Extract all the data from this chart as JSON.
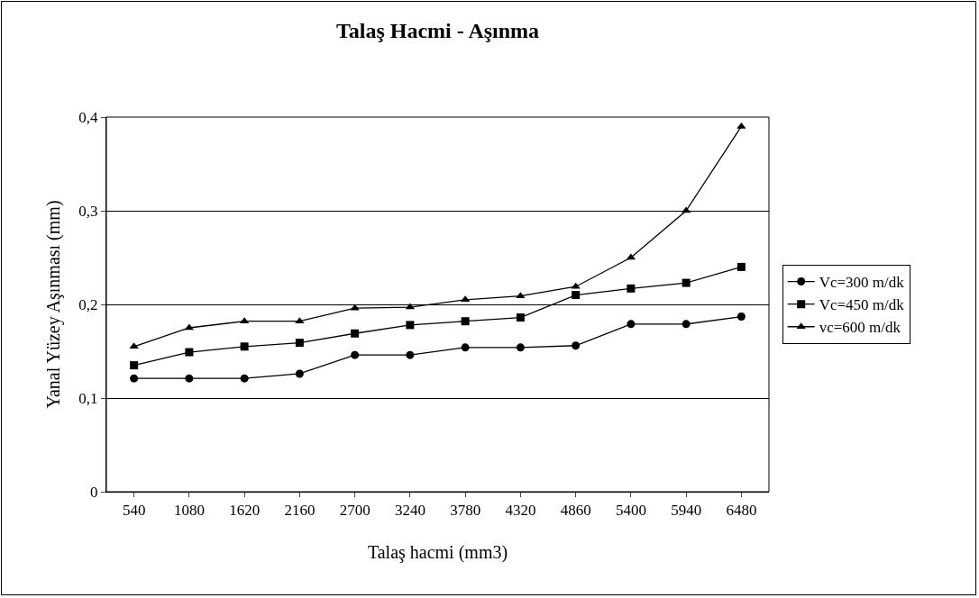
{
  "chart_data": {
    "type": "line",
    "title": "Talaş Hacmi - Aşınma",
    "xlabel": "Talaş hacmi (mm3)",
    "ylabel": "Yanal Yüzey Aşınması (mm)",
    "categories": [
      "540",
      "1080",
      "1620",
      "2160",
      "2700",
      "3240",
      "3780",
      "4320",
      "4860",
      "5400",
      "5940",
      "6480"
    ],
    "series": [
      {
        "name": "Vc=300 m/dk",
        "color": "#000000",
        "marker": "circle",
        "values": [
          0.121,
          0.121,
          0.121,
          0.126,
          0.146,
          0.146,
          0.154,
          0.154,
          0.156,
          0.179,
          0.179,
          0.187
        ]
      },
      {
        "name": "Vc=450 m/dk",
        "color": "#000000",
        "marker": "square",
        "values": [
          0.135,
          0.149,
          0.155,
          0.159,
          0.169,
          0.178,
          0.182,
          0.186,
          0.21,
          0.217,
          0.223,
          0.24
        ]
      },
      {
        "name": "vc=600 m/dk",
        "color": "#000000",
        "marker": "triangle",
        "values": [
          0.155,
          0.175,
          0.182,
          0.182,
          0.196,
          0.197,
          0.205,
          0.209,
          0.219,
          0.25,
          0.3,
          0.39
        ]
      }
    ],
    "ylim": [
      0,
      0.4
    ],
    "yticks": [
      {
        "value": 0,
        "label": "0"
      },
      {
        "value": 0.1,
        "label": "0,1"
      },
      {
        "value": 0.2,
        "label": "0,2"
      },
      {
        "value": 0.3,
        "label": "0,3"
      },
      {
        "value": 0.4,
        "label": "0,4"
      }
    ],
    "grid": "y",
    "legend": "right",
    "line_style": "solid"
  }
}
